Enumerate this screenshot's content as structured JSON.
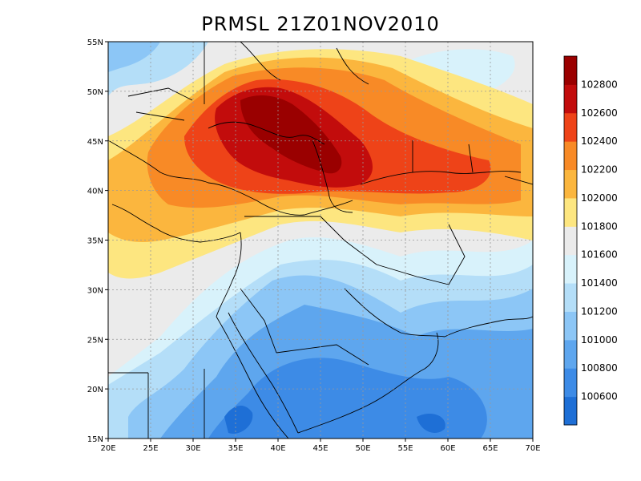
{
  "title": "PRMSL 21Z01NOV2010",
  "map": {
    "lon_range": [
      20,
      70
    ],
    "lat_range": [
      15,
      55
    ],
    "x_ticks": [
      "20E",
      "25E",
      "30E",
      "35E",
      "40E",
      "45E",
      "50E",
      "55E",
      "60E",
      "65E",
      "70E"
    ],
    "y_ticks": [
      "15N",
      "20N",
      "25N",
      "30N",
      "35N",
      "40N",
      "45N",
      "50N",
      "55N"
    ],
    "grid": "dotted"
  },
  "colorbar": {
    "levels": [
      "100600",
      "100800",
      "101000",
      "101200",
      "101400",
      "101600",
      "101800",
      "102000",
      "102200",
      "102400",
      "102600",
      "102800"
    ],
    "colors": [
      "#1e6fd6",
      "#3d8be6",
      "#5ea6ee",
      "#8cc6f6",
      "#b4def8",
      "#d8f2fb",
      "#ebebeb",
      "#fde680",
      "#fbb63e",
      "#f88a26",
      "#ee4318",
      "#c20c0c",
      "#9a0000"
    ]
  }
}
